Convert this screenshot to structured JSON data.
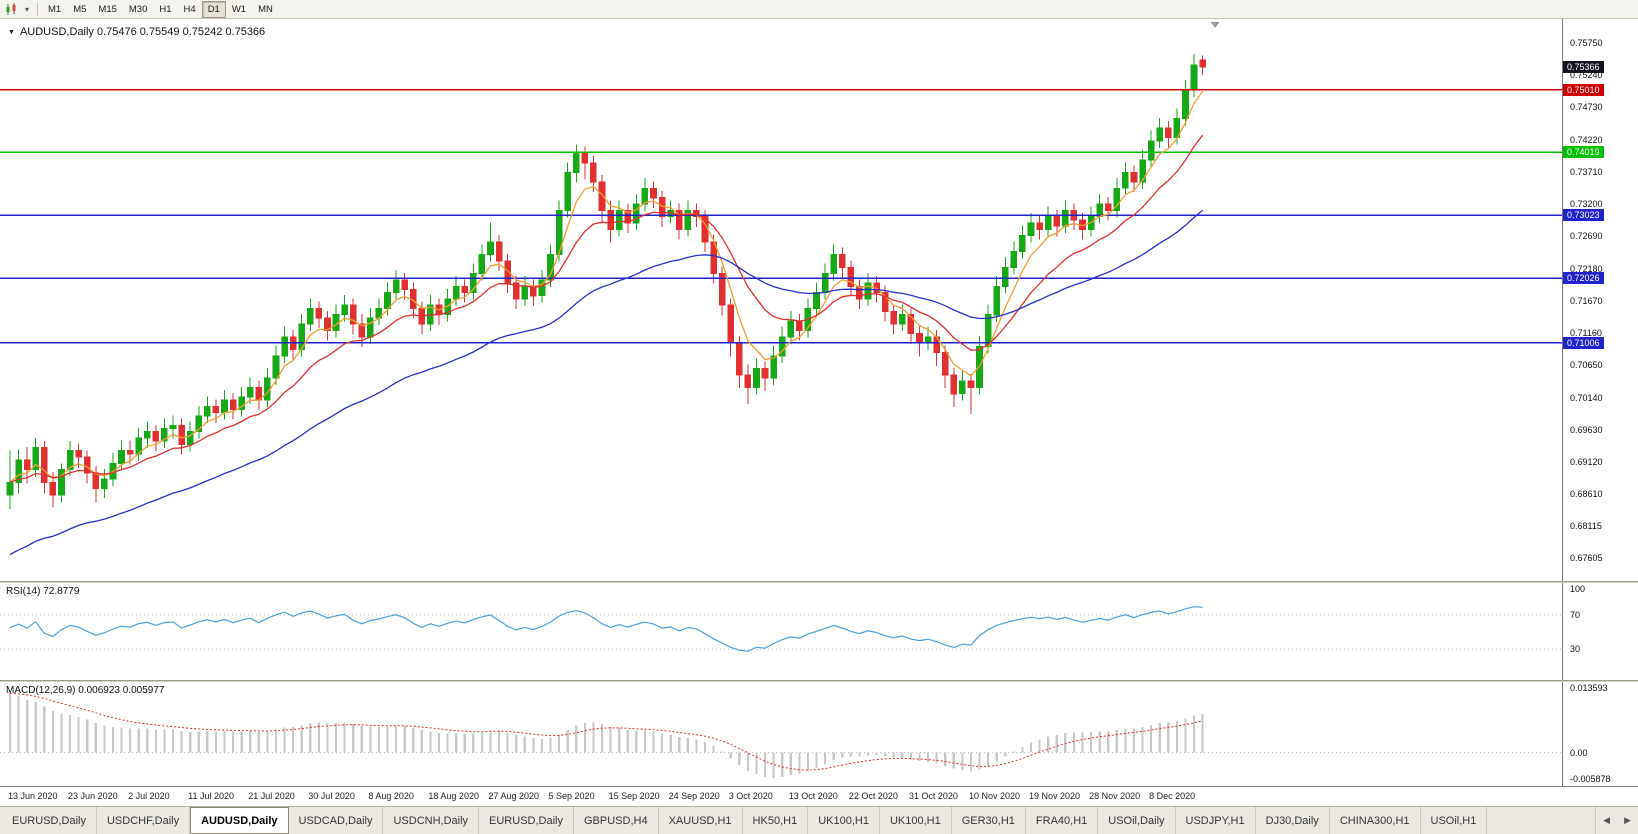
{
  "toolbar": {
    "timeframes": [
      "M1",
      "M5",
      "M15",
      "M30",
      "H1",
      "H4",
      "D1",
      "W1",
      "MN"
    ],
    "active": "D1",
    "dropdown_icon": "▾"
  },
  "chart_header": "AUDUSD,Daily  0.75476 0.75549 0.75242 0.75366",
  "chart_data": {
    "type": "candlestick",
    "symbol": "AUDUSD",
    "timeframe": "Daily",
    "ohlc": {
      "open": "0.75476",
      "high": "0.75549",
      "low": "0.75242",
      "close": "0.75366"
    },
    "y_max": 0.76,
    "y_min": 0.6735,
    "current_price": 0.75366,
    "current_price_label": "0.75366",
    "colors": {
      "bull": "#16a816",
      "bear": "#e03030",
      "current_badge": "#14141e"
    },
    "price_axis": [
      "0.75750",
      "0.75240",
      "0.74730",
      "0.74220",
      "0.73710",
      "0.73200",
      "0.72690",
      "0.72180",
      "0.71670",
      "0.71160",
      "0.70650",
      "0.70140",
      "0.69630",
      "0.69120",
      "0.68610",
      "0.68115",
      "0.67605"
    ],
    "hlines": [
      {
        "value": 0.7501,
        "label": "0.75010",
        "color": "#d00000",
        "width": 1.6
      },
      {
        "value": 0.74019,
        "label": "0.74019",
        "color": "#00c000",
        "width": 1.8
      },
      {
        "value": 0.73023,
        "label": "0.73023",
        "color": "#2222cc",
        "width": 1.6
      },
      {
        "value": 0.72026,
        "label": "0.72026",
        "color": "#2222cc",
        "width": 1.6
      },
      {
        "value": 0.71006,
        "label": "0.71006",
        "color": "#2222cc",
        "width": 1.6
      }
    ],
    "ma_lines": [
      {
        "name": "ma-fast-orange",
        "period": 5,
        "color": "#f0a030"
      },
      {
        "name": "ma-mid-red",
        "period": 13,
        "color": "#e03030"
      },
      {
        "name": "ma-slow-blue",
        "period": 40,
        "color": "#2830c8",
        "seed": 0.676
      }
    ],
    "dates": [
      "13 Jun 2020",
      "23 Jun 2020",
      "2 Jul 2020",
      "11 Jul 2020",
      "21 Jul 2020",
      "30 Jul 2020",
      "8 Aug 2020",
      "18 Aug 2020",
      "27 Aug 2020",
      "5 Sep 2020",
      "15 Sep 2020",
      "24 Sep 2020",
      "3 Oct 2020",
      "13 Oct 2020",
      "22 Oct 2020",
      "31 Oct 2020",
      "10 Nov 2020",
      "19 Nov 2020",
      "28 Nov 2020",
      "8 Dec 2020"
    ],
    "candles": [
      [
        0.686,
        0.693,
        0.6838,
        0.688
      ],
      [
        0.688,
        0.6932,
        0.6862,
        0.6915
      ],
      [
        0.6915,
        0.6936,
        0.6878,
        0.69
      ],
      [
        0.69,
        0.695,
        0.6888,
        0.6935
      ],
      [
        0.6935,
        0.6945,
        0.6862,
        0.688
      ],
      [
        0.688,
        0.6896,
        0.684,
        0.686
      ],
      [
        0.686,
        0.691,
        0.6848,
        0.69
      ],
      [
        0.69,
        0.6945,
        0.689,
        0.693
      ],
      [
        0.693,
        0.6941,
        0.6903,
        0.692
      ],
      [
        0.692,
        0.693,
        0.6878,
        0.6895
      ],
      [
        0.6895,
        0.6906,
        0.6848,
        0.687
      ],
      [
        0.687,
        0.6901,
        0.6855,
        0.6885
      ],
      [
        0.6885,
        0.6926,
        0.6874,
        0.691
      ],
      [
        0.691,
        0.6946,
        0.6899,
        0.693
      ],
      [
        0.693,
        0.6946,
        0.6908,
        0.6925
      ],
      [
        0.6925,
        0.6966,
        0.6914,
        0.695
      ],
      [
        0.695,
        0.6976,
        0.6934,
        0.696
      ],
      [
        0.696,
        0.6971,
        0.6929,
        0.6945
      ],
      [
        0.6945,
        0.6981,
        0.6934,
        0.6965
      ],
      [
        0.6965,
        0.6986,
        0.6949,
        0.697
      ],
      [
        0.697,
        0.6981,
        0.6924,
        0.694
      ],
      [
        0.694,
        0.6976,
        0.6929,
        0.696
      ],
      [
        0.696,
        0.7001,
        0.6949,
        0.6985
      ],
      [
        0.6985,
        0.7016,
        0.6974,
        0.7
      ],
      [
        0.7,
        0.7011,
        0.6974,
        0.699
      ],
      [
        0.699,
        0.7026,
        0.6979,
        0.701
      ],
      [
        0.701,
        0.7021,
        0.6979,
        0.6995
      ],
      [
        0.6995,
        0.7031,
        0.6984,
        0.7015
      ],
      [
        0.7015,
        0.7046,
        0.7004,
        0.703
      ],
      [
        0.703,
        0.7041,
        0.6994,
        0.701
      ],
      [
        0.701,
        0.7061,
        0.6999,
        0.7045
      ],
      [
        0.7045,
        0.7096,
        0.7034,
        0.708
      ],
      [
        0.708,
        0.7126,
        0.7069,
        0.711
      ],
      [
        0.711,
        0.7121,
        0.7074,
        0.709
      ],
      [
        0.709,
        0.7146,
        0.7079,
        0.713
      ],
      [
        0.713,
        0.7171,
        0.7119,
        0.7155
      ],
      [
        0.7155,
        0.7166,
        0.7124,
        0.714
      ],
      [
        0.714,
        0.7151,
        0.7104,
        0.712
      ],
      [
        0.712,
        0.7161,
        0.7109,
        0.7145
      ],
      [
        0.7145,
        0.7176,
        0.7134,
        0.716
      ],
      [
        0.716,
        0.7171,
        0.7114,
        0.713
      ],
      [
        0.713,
        0.7146,
        0.7094,
        0.711
      ],
      [
        0.711,
        0.7156,
        0.7099,
        0.714
      ],
      [
        0.714,
        0.7171,
        0.7129,
        0.7155
      ],
      [
        0.7155,
        0.7196,
        0.7144,
        0.718
      ],
      [
        0.718,
        0.7216,
        0.7169,
        0.72
      ],
      [
        0.72,
        0.7211,
        0.7169,
        0.7185
      ],
      [
        0.7185,
        0.7196,
        0.7139,
        0.7155
      ],
      [
        0.7155,
        0.7166,
        0.7114,
        0.713
      ],
      [
        0.713,
        0.7176,
        0.7119,
        0.716
      ],
      [
        0.716,
        0.7171,
        0.7129,
        0.7145
      ],
      [
        0.7145,
        0.7186,
        0.7134,
        0.717
      ],
      [
        0.717,
        0.7206,
        0.7159,
        0.719
      ],
      [
        0.719,
        0.7201,
        0.7164,
        0.718
      ],
      [
        0.718,
        0.7226,
        0.7169,
        0.721
      ],
      [
        0.721,
        0.7256,
        0.7199,
        0.724
      ],
      [
        0.724,
        0.7291,
        0.7229,
        0.726
      ],
      [
        0.726,
        0.7271,
        0.7214,
        0.723
      ],
      [
        0.723,
        0.7241,
        0.7179,
        0.7195
      ],
      [
        0.7195,
        0.7206,
        0.7154,
        0.717
      ],
      [
        0.717,
        0.7206,
        0.7159,
        0.719
      ],
      [
        0.719,
        0.7201,
        0.7159,
        0.7175
      ],
      [
        0.7175,
        0.7216,
        0.7164,
        0.72
      ],
      [
        0.72,
        0.7256,
        0.7189,
        0.724
      ],
      [
        0.724,
        0.7326,
        0.7229,
        0.731
      ],
      [
        0.731,
        0.7386,
        0.7299,
        0.737
      ],
      [
        0.737,
        0.7414,
        0.7354,
        0.74
      ],
      [
        0.74,
        0.7411,
        0.7359,
        0.7385
      ],
      [
        0.7385,
        0.7396,
        0.7339,
        0.7355
      ],
      [
        0.7355,
        0.7366,
        0.7289,
        0.731
      ],
      [
        0.731,
        0.7326,
        0.7259,
        0.728
      ],
      [
        0.728,
        0.7326,
        0.7269,
        0.731
      ],
      [
        0.731,
        0.7321,
        0.7274,
        0.729
      ],
      [
        0.729,
        0.7336,
        0.7279,
        0.732
      ],
      [
        0.732,
        0.7361,
        0.7309,
        0.7345
      ],
      [
        0.7345,
        0.7356,
        0.7314,
        0.733
      ],
      [
        0.733,
        0.7341,
        0.7284,
        0.73
      ],
      [
        0.73,
        0.7326,
        0.7289,
        0.731
      ],
      [
        0.731,
        0.7321,
        0.7264,
        0.728
      ],
      [
        0.728,
        0.7326,
        0.7269,
        0.731
      ],
      [
        0.731,
        0.7321,
        0.7284,
        0.73
      ],
      [
        0.73,
        0.7311,
        0.7244,
        0.726
      ],
      [
        0.726,
        0.7271,
        0.7194,
        0.721
      ],
      [
        0.721,
        0.7221,
        0.7144,
        0.716
      ],
      [
        0.716,
        0.7171,
        0.7079,
        0.71
      ],
      [
        0.71,
        0.7111,
        0.7029,
        0.705
      ],
      [
        0.705,
        0.7066,
        0.7004,
        0.703
      ],
      [
        0.703,
        0.7076,
        0.7019,
        0.706
      ],
      [
        0.706,
        0.7071,
        0.7024,
        0.7045
      ],
      [
        0.7045,
        0.7096,
        0.7034,
        0.708
      ],
      [
        0.708,
        0.7126,
        0.7069,
        0.711
      ],
      [
        0.711,
        0.7151,
        0.7099,
        0.7135
      ],
      [
        0.7135,
        0.7146,
        0.7104,
        0.712
      ],
      [
        0.712,
        0.7171,
        0.7109,
        0.7155
      ],
      [
        0.7155,
        0.7196,
        0.7144,
        0.718
      ],
      [
        0.718,
        0.7226,
        0.7169,
        0.721
      ],
      [
        0.721,
        0.7256,
        0.7199,
        0.724
      ],
      [
        0.724,
        0.7251,
        0.7204,
        0.722
      ],
      [
        0.722,
        0.7231,
        0.7174,
        0.719
      ],
      [
        0.719,
        0.7201,
        0.7154,
        0.717
      ],
      [
        0.717,
        0.7211,
        0.7159,
        0.7195
      ],
      [
        0.7195,
        0.7206,
        0.7164,
        0.718
      ],
      [
        0.718,
        0.7191,
        0.7134,
        0.715
      ],
      [
        0.715,
        0.7161,
        0.7114,
        0.713
      ],
      [
        0.713,
        0.7161,
        0.7119,
        0.7145
      ],
      [
        0.7145,
        0.7156,
        0.7099,
        0.7115
      ],
      [
        0.7115,
        0.7126,
        0.7079,
        0.71
      ],
      [
        0.71,
        0.7126,
        0.7089,
        0.711
      ],
      [
        0.711,
        0.7121,
        0.7064,
        0.7085
      ],
      [
        0.7085,
        0.7096,
        0.7029,
        0.705
      ],
      [
        0.705,
        0.7061,
        0.6999,
        0.702
      ],
      [
        0.702,
        0.7056,
        0.7009,
        0.704
      ],
      [
        0.704,
        0.7051,
        0.6988,
        0.703
      ],
      [
        0.703,
        0.7111,
        0.7019,
        0.7095
      ],
      [
        0.7095,
        0.7161,
        0.7084,
        0.7145
      ],
      [
        0.7145,
        0.7206,
        0.7134,
        0.719
      ],
      [
        0.719,
        0.7236,
        0.7179,
        0.722
      ],
      [
        0.722,
        0.7261,
        0.7209,
        0.7245
      ],
      [
        0.7245,
        0.7286,
        0.7234,
        0.727
      ],
      [
        0.727,
        0.7306,
        0.7259,
        0.729
      ],
      [
        0.729,
        0.7301,
        0.7264,
        0.728
      ],
      [
        0.728,
        0.7316,
        0.7269,
        0.73
      ],
      [
        0.73,
        0.7311,
        0.7269,
        0.7285
      ],
      [
        0.7285,
        0.7326,
        0.7274,
        0.731
      ],
      [
        0.731,
        0.7321,
        0.7279,
        0.7295
      ],
      [
        0.7295,
        0.7306,
        0.7264,
        0.728
      ],
      [
        0.728,
        0.7316,
        0.7269,
        0.73
      ],
      [
        0.73,
        0.7336,
        0.7289,
        0.732
      ],
      [
        0.732,
        0.7331,
        0.7294,
        0.731
      ],
      [
        0.731,
        0.7361,
        0.7299,
        0.7345
      ],
      [
        0.7345,
        0.7386,
        0.7334,
        0.737
      ],
      [
        0.737,
        0.7381,
        0.7339,
        0.7355
      ],
      [
        0.7355,
        0.7406,
        0.7344,
        0.739
      ],
      [
        0.739,
        0.7436,
        0.7379,
        0.742
      ],
      [
        0.742,
        0.7456,
        0.7409,
        0.744
      ],
      [
        0.744,
        0.7451,
        0.7409,
        0.7425
      ],
      [
        0.7425,
        0.7471,
        0.7414,
        0.7455
      ],
      [
        0.7455,
        0.7516,
        0.7444,
        0.75
      ],
      [
        0.75,
        0.7557,
        0.7489,
        0.754
      ],
      [
        0.75476,
        0.75549,
        0.75242,
        0.75366
      ]
    ]
  },
  "rsi": {
    "label": "RSI(14) 72.8779",
    "period": 14,
    "color": "#4f9fd8",
    "levels": [
      "100",
      "70",
      "30"
    ],
    "level_values": [
      100,
      70,
      30
    ]
  },
  "macd": {
    "label": "MACD(12,26,9) 0.006923 0.005977",
    "scale_max": 0.013593,
    "scale_min": -0.005878,
    "axis_labels": [
      "0.013593",
      "0.00",
      "-0.005878"
    ],
    "histogram_color": "#c8c8c8",
    "signal_color": "#e03030",
    "seed_offset": 0.0133
  },
  "tabs": {
    "items": [
      "EURUSD,Daily",
      "USDCHF,Daily",
      "AUDUSD,Daily",
      "USDCAD,Daily",
      "USDCNH,Daily",
      "EURUSD,Daily",
      "GBPUSD,H4",
      "XAUUSD,H1",
      "HK50,H1",
      "UK100,H1",
      "UK100,H1",
      "GER30,H1",
      "FRA40,H1",
      "USOil,Daily",
      "USDJPY,H1",
      "DJ30,Daily",
      "CHINA300,H1",
      "USOil,H1"
    ],
    "active_index": 2,
    "arrows": [
      "◀",
      "▶"
    ]
  }
}
